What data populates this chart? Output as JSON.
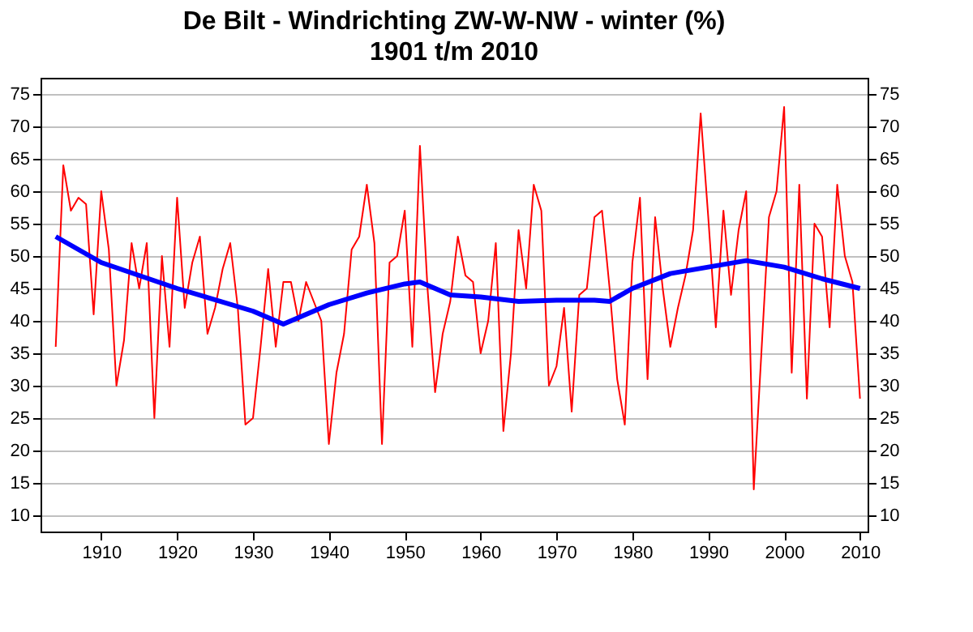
{
  "chart_data": {
    "type": "line",
    "title": "De Bilt - Windrichting ZW-W-NW - winter  (%)",
    "subtitle": "1901 t/m 2010",
    "series": [
      {
        "color": "#ff0000",
        "x": [
          1904,
          1905,
          1906,
          1907,
          1908,
          1909,
          1910,
          1911,
          1912,
          1913,
          1914,
          1915,
          1916,
          1917,
          1918,
          1919,
          1920,
          1921,
          1922,
          1923,
          1924,
          1925,
          1926,
          1927,
          1928,
          1929,
          1930,
          1931,
          1932,
          1933,
          1934,
          1935,
          1936,
          1937,
          1938,
          1939,
          1940,
          1941,
          1942,
          1943,
          1944,
          1945,
          1946,
          1947,
          1948,
          1949,
          1950,
          1951,
          1952,
          1953,
          1954,
          1955,
          1956,
          1957,
          1958,
          1959,
          1960,
          1961,
          1962,
          1963,
          1964,
          1965,
          1966,
          1967,
          1968,
          1969,
          1970,
          1971,
          1972,
          1973,
          1974,
          1975,
          1976,
          1977,
          1978,
          1979,
          1980,
          1981,
          1982,
          1983,
          1984,
          1985,
          1986,
          1987,
          1988,
          1989,
          1990,
          1991,
          1992,
          1993,
          1994,
          1995,
          1996,
          1997,
          1998,
          1999,
          2000,
          2001,
          2002,
          2003,
          2004,
          2005,
          2006,
          2007,
          2008,
          2009,
          2010
        ],
        "values": [
          36,
          64,
          57,
          59,
          58,
          41,
          60,
          51,
          30,
          37,
          52,
          45,
          52,
          25,
          50,
          36,
          59,
          42,
          49,
          53,
          38,
          42,
          48,
          52,
          42,
          24,
          25,
          36,
          48,
          36,
          46,
          46,
          40,
          46,
          43,
          40,
          21,
          32,
          38,
          51,
          53,
          61,
          52,
          21,
          49,
          50,
          57,
          36,
          67,
          45,
          29,
          38,
          43,
          53,
          47,
          46,
          35,
          40,
          52,
          23,
          35,
          54,
          45,
          61,
          57,
          30,
          33,
          42,
          26,
          44,
          45,
          56,
          57,
          45,
          31,
          24,
          49,
          59,
          31,
          56,
          45,
          36,
          42,
          47,
          54,
          72,
          56,
          39,
          57,
          44,
          54,
          60,
          14,
          35,
          56,
          60,
          73,
          32,
          61,
          28,
          55,
          53,
          39,
          61,
          50,
          46,
          28
        ]
      },
      {
        "color": "#0000ff",
        "x": [
          1904,
          1910,
          1920,
          1930,
          1934,
          1940,
          1945,
          1950,
          1952,
          1956,
          1960,
          1965,
          1970,
          1975,
          1977,
          1980,
          1985,
          1990,
          1995,
          2000,
          2005,
          2010
        ],
        "values": [
          53,
          49,
          45,
          41.5,
          39.5,
          42.5,
          44.3,
          45.7,
          46,
          44,
          43.7,
          43,
          43.2,
          43.2,
          43,
          45,
          47.3,
          48.3,
          49.3,
          48.3,
          46.5,
          45
        ]
      }
    ],
    "xlim": [
      1902,
      2011
    ],
    "xticks": [
      1910,
      1920,
      1930,
      1940,
      1950,
      1960,
      1970,
      1980,
      1990,
      2000,
      2010
    ],
    "ylim": [
      7.5,
      77.5
    ],
    "yticks": [
      10,
      15,
      20,
      25,
      30,
      35,
      40,
      45,
      50,
      55,
      60,
      65,
      70,
      75
    ],
    "y2lim": [
      7.5,
      77.5
    ],
    "y2ticks": [
      10,
      15,
      20,
      25,
      30,
      35,
      40,
      45,
      50,
      55,
      60,
      65,
      70,
      75
    ],
    "grid": "y",
    "marker": "none",
    "line_style": "solid"
  }
}
